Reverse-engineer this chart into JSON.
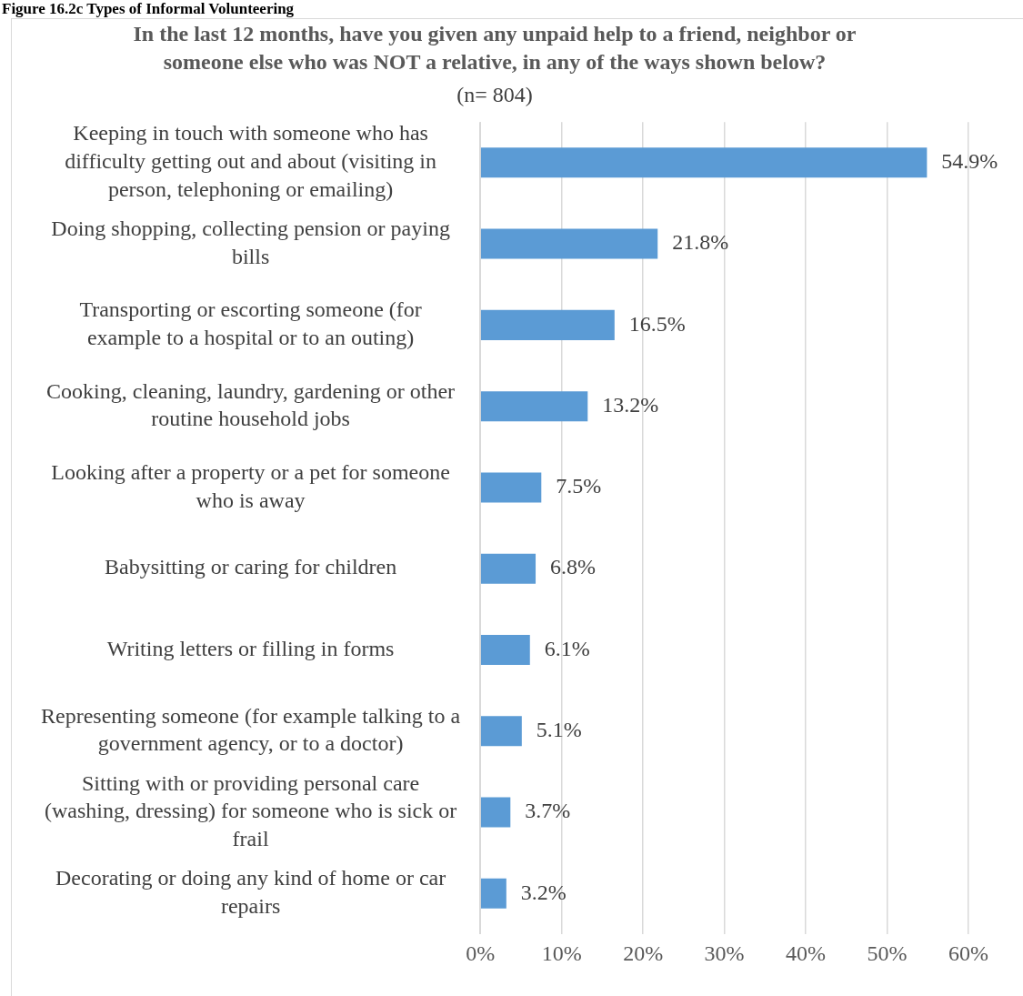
{
  "chart_data": {
    "type": "bar",
    "orientation": "horizontal",
    "title": "In the last 12 months, have you given any unpaid help to a friend, neighbor or\nsomeone else who was NOT a relative, in any of the ways shown below?",
    "subtitle": "(n= 804)",
    "annotations": [
      "Figure 16.2c Types of Informal Volunteering"
    ],
    "categories": [
      "Keeping in touch with someone who has\ndifficulty getting out and about (visiting in\nperson, telephoning or emailing)",
      "Doing shopping, collecting pension or paying\nbills",
      "Transporting or escorting someone (for\nexample to a hospital or to an outing)",
      "Cooking, cleaning, laundry, gardening or other\nroutine household jobs",
      "Looking after a property or a pet for someone\nwho is away",
      "Babysitting or caring for children",
      "Writing letters or filling in forms",
      "Representing someone (for example talking to a\ngovernment agency, or to a doctor)",
      "Sitting with or providing personal care\n(washing, dressing) for someone who is sick or\nfrail",
      "Decorating or doing any kind of home or car\nrepairs"
    ],
    "values": [
      54.9,
      21.8,
      16.5,
      13.2,
      7.5,
      6.8,
      6.1,
      5.1,
      3.7,
      3.2
    ],
    "value_labels": [
      "54.9%",
      "21.8%",
      "16.5%",
      "13.2%",
      "7.5%",
      "6.8%",
      "6.1%",
      "5.1%",
      "3.7%",
      "3.2%"
    ],
    "color": "#5b9bd5",
    "xlim": [
      0,
      60
    ],
    "xticks": [
      {
        "value": 0,
        "label": "0%"
      },
      {
        "value": 10,
        "label": "10%"
      },
      {
        "value": 20,
        "label": "20%"
      },
      {
        "value": 30,
        "label": "30%"
      },
      {
        "value": 40,
        "label": "40%"
      },
      {
        "value": 50,
        "label": "50%"
      },
      {
        "value": 60,
        "label": "60%"
      }
    ],
    "grid": "x",
    "legend": false
  }
}
